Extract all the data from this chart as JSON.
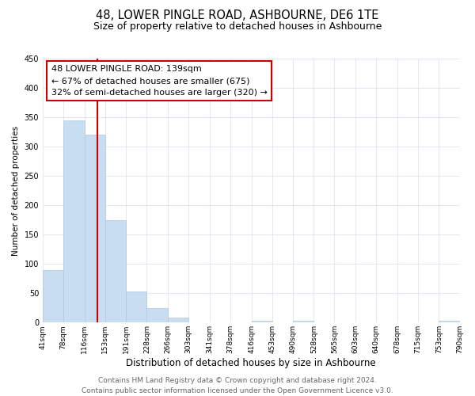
{
  "title": "48, LOWER PINGLE ROAD, ASHBOURNE, DE6 1TE",
  "subtitle": "Size of property relative to detached houses in Ashbourne",
  "xlabel": "Distribution of detached houses by size in Ashbourne",
  "ylabel": "Number of detached properties",
  "bin_edges": [
    41,
    78,
    116,
    153,
    191,
    228,
    266,
    303,
    341,
    378,
    416,
    453,
    490,
    528,
    565,
    603,
    640,
    678,
    715,
    753,
    790
  ],
  "bin_labels": [
    "41sqm",
    "78sqm",
    "116sqm",
    "153sqm",
    "191sqm",
    "228sqm",
    "266sqm",
    "303sqm",
    "341sqm",
    "378sqm",
    "416sqm",
    "453sqm",
    "490sqm",
    "528sqm",
    "565sqm",
    "603sqm",
    "640sqm",
    "678sqm",
    "715sqm",
    "753sqm",
    "790sqm"
  ],
  "bar_heights": [
    90,
    345,
    320,
    175,
    53,
    25,
    8,
    0,
    0,
    0,
    3,
    0,
    3,
    0,
    0,
    0,
    0,
    0,
    0,
    3
  ],
  "bar_color": "#c8ddf0",
  "bar_edge_color": "#aec8e0",
  "property_line_x": 139,
  "property_line_color": "#cc0000",
  "annotation_line1": "48 LOWER PINGLE ROAD: 139sqm",
  "annotation_line2": "← 67% of detached houses are smaller (675)",
  "annotation_line3": "32% of semi-detached houses are larger (320) →",
  "annotation_box_color": "#ffffff",
  "annotation_box_edge_color": "#cc0000",
  "ylim": [
    0,
    450
  ],
  "yticks": [
    0,
    50,
    100,
    150,
    200,
    250,
    300,
    350,
    400,
    450
  ],
  "background_color": "#ffffff",
  "grid_color": "#dde5ef",
  "footer_text": "Contains HM Land Registry data © Crown copyright and database right 2024.\nContains public sector information licensed under the Open Government Licence v3.0.",
  "title_fontsize": 10.5,
  "subtitle_fontsize": 9,
  "xlabel_fontsize": 8.5,
  "ylabel_fontsize": 7.5,
  "annotation_fontsize": 8,
  "footer_fontsize": 6.5,
  "tick_fontsize": 6.5,
  "ytick_fontsize": 7
}
